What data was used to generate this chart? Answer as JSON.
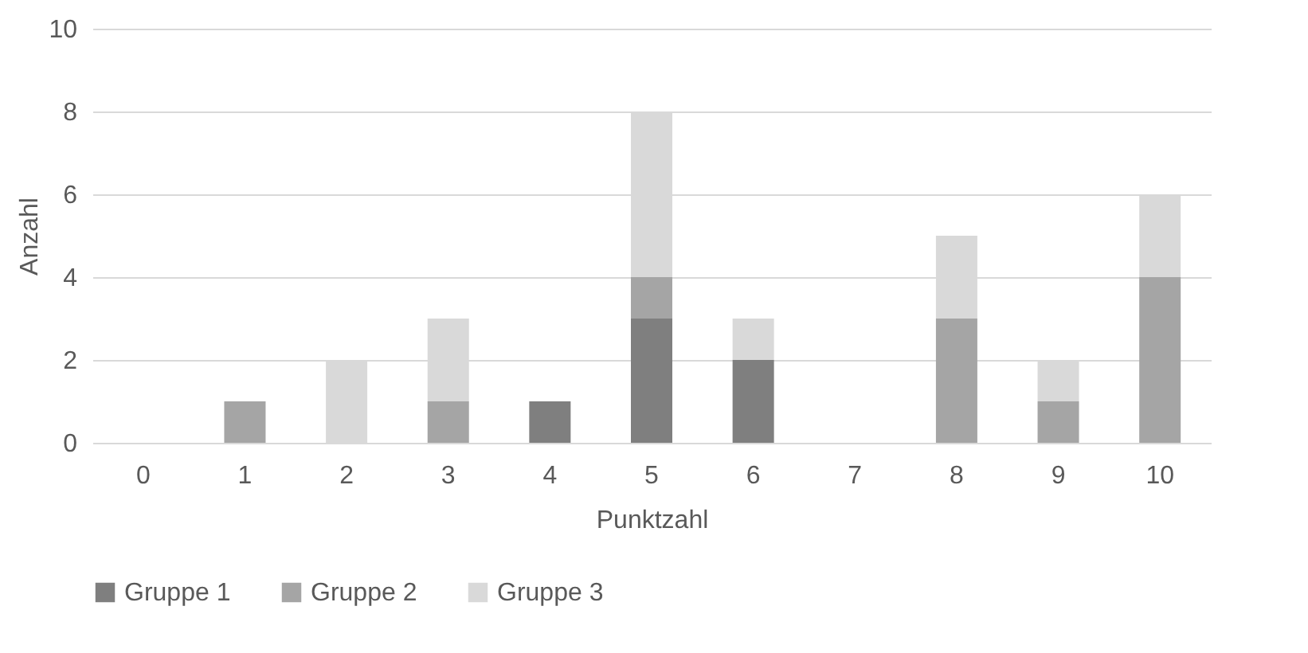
{
  "chart_data": {
    "type": "bar",
    "stacked": true,
    "xlabel": "Punktzahl",
    "ylabel": "Anzahl",
    "categories": [
      "0",
      "1",
      "2",
      "3",
      "4",
      "5",
      "6",
      "7",
      "8",
      "9",
      "10"
    ],
    "series": [
      {
        "name": "Gruppe 1",
        "color": "#7f7f7f",
        "values": [
          0,
          0,
          0,
          0,
          1,
          3,
          2,
          0,
          0,
          0,
          0
        ]
      },
      {
        "name": "Gruppe 2",
        "color": "#a5a5a5",
        "values": [
          0,
          1,
          0,
          1,
          0,
          1,
          0,
          0,
          3,
          1,
          4
        ]
      },
      {
        "name": "Gruppe 3",
        "color": "#d9d9d9",
        "values": [
          0,
          0,
          2,
          2,
          0,
          4,
          1,
          0,
          2,
          1,
          2
        ]
      }
    ],
    "ylim": [
      0,
      10
    ],
    "yticks": [
      0,
      2,
      4,
      6,
      8,
      10
    ],
    "grid": "y",
    "legend": "bottom"
  }
}
